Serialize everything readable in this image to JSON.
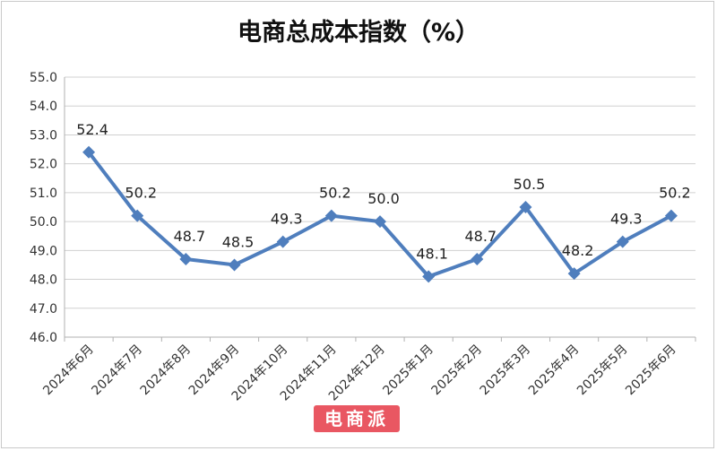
{
  "chart_data": {
    "type": "line",
    "title": "电商总成本指数（%）",
    "categories": [
      "2024年6月",
      "2024年7月",
      "2024年8月",
      "2024年9月",
      "2024年10月",
      "2024年11月",
      "2024年12月",
      "2025年1月",
      "2025年2月",
      "2025年3月",
      "2025年4月",
      "2025年5月",
      "2025年6月"
    ],
    "series": [
      {
        "values": [
          52.4,
          50.2,
          48.7,
          48.5,
          49.3,
          50.2,
          50.0,
          48.1,
          48.7,
          50.5,
          48.2,
          49.3,
          50.2
        ]
      }
    ],
    "data_labels": [
      "52.4",
      "50.2",
      "48.7",
      "48.5",
      "49.3",
      "50.2",
      "50.0",
      "48.1",
      "48.7",
      "50.5",
      "48.2",
      "49.3",
      "50.2"
    ],
    "ylim": [
      46.0,
      55.0
    ],
    "yticks": [
      "46.0",
      "47.0",
      "48.0",
      "49.0",
      "50.0",
      "51.0",
      "52.0",
      "53.0",
      "54.0",
      "55.0"
    ],
    "grid": "horizontal",
    "line_color": "#4f7ebd",
    "marker": "diamond",
    "xlabel": "",
    "ylabel": ""
  },
  "watermark": {
    "text": "电商派",
    "color": "#e53946"
  }
}
